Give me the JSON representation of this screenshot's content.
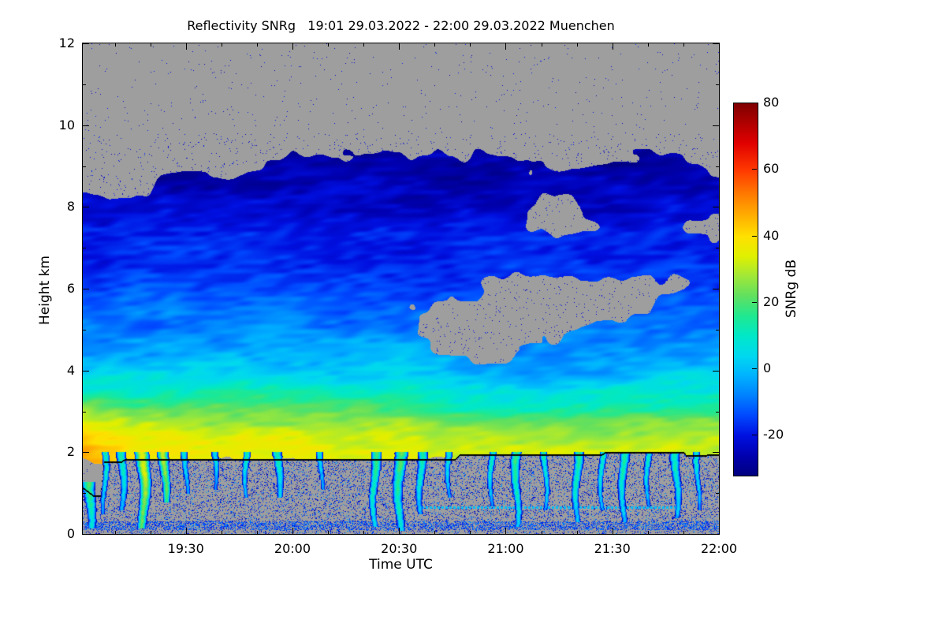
{
  "chart_data": {
    "type": "heatmap",
    "title": "Reflectivity SNRg   19:01 29.03.2022 - 22:00 29.03.2022 Muenchen",
    "xlabel": "Time UTC",
    "ylabel": "Height km",
    "colorbar_label": "SNRg dB",
    "station": "Muenchen",
    "time_start": "19:01 29.03.2022",
    "time_end": "22:00 29.03.2022",
    "x_range_minutes": [
      1,
      180
    ],
    "x_tick_labels": [
      "19:30",
      "20:00",
      "20:30",
      "21:00",
      "21:30",
      "22:00"
    ],
    "x_tick_minutes": [
      30,
      60,
      90,
      120,
      150,
      180
    ],
    "x_minor_step_minutes": 10,
    "y_ticks": [
      0,
      2,
      4,
      6,
      8,
      10,
      12
    ],
    "y_minor_ticks": [
      1,
      3,
      5,
      7,
      9,
      11
    ],
    "ylim": [
      0,
      12
    ],
    "colorbar_ticks": [
      80,
      60,
      40,
      20,
      0,
      -20
    ],
    "clim": [
      -32,
      80
    ],
    "no_data_color": "#9e9e9e",
    "colormap_stops": [
      [
        -32,
        "#00007F"
      ],
      [
        -26,
        "#0000B0"
      ],
      [
        -20,
        "#0010E0"
      ],
      [
        -14,
        "#0048FF"
      ],
      [
        -8,
        "#0080FF"
      ],
      [
        -2,
        "#00B2FF"
      ],
      [
        4,
        "#00D8F0"
      ],
      [
        10,
        "#00E8C8"
      ],
      [
        16,
        "#20E890"
      ],
      [
        22,
        "#60E060"
      ],
      [
        28,
        "#A0E838"
      ],
      [
        34,
        "#E0F000"
      ],
      [
        40,
        "#FFE000"
      ],
      [
        46,
        "#FFB000"
      ],
      [
        52,
        "#FF8000"
      ],
      [
        60,
        "#FF3800"
      ],
      [
        68,
        "#E00000"
      ],
      [
        74,
        "#B00000"
      ],
      [
        80,
        "#7F0000"
      ]
    ],
    "time_columns_minutes": [
      0,
      15,
      30,
      45,
      60,
      75,
      90,
      105,
      120,
      135,
      150,
      165,
      180
    ],
    "heights_km": [
      12,
      11.5,
      11,
      10.5,
      10,
      9.5,
      9,
      8.5,
      8,
      7.5,
      7,
      6.5,
      6,
      5.5,
      5,
      4.5,
      4,
      3.5,
      3,
      2.5,
      2,
      1.5,
      1,
      0.5,
      0
    ],
    "snr_grid_db": [
      [
        null,
        null,
        null,
        null,
        null,
        null,
        null,
        null,
        null,
        null,
        null,
        null,
        null
      ],
      [
        null,
        null,
        null,
        null,
        null,
        null,
        null,
        null,
        null,
        null,
        null,
        null,
        null
      ],
      [
        null,
        null,
        null,
        null,
        null,
        null,
        null,
        null,
        null,
        null,
        null,
        null,
        null
      ],
      [
        null,
        null,
        null,
        null,
        null,
        null,
        null,
        null,
        null,
        null,
        null,
        null,
        null
      ],
      [
        null,
        null,
        null,
        null,
        null,
        null,
        null,
        null,
        null,
        null,
        null,
        null,
        null
      ],
      [
        null,
        null,
        null,
        null,
        null,
        null,
        null,
        null,
        null,
        null,
        null,
        null,
        null
      ],
      [
        null,
        null,
        null,
        null,
        -27,
        -26,
        -26,
        -27,
        -27,
        null,
        -27,
        -27,
        null
      ],
      [
        null,
        null,
        -26,
        -25,
        -24,
        -24,
        -24,
        -25,
        -25,
        -25,
        -24,
        -25,
        -25
      ],
      [
        -24,
        -24,
        -23,
        -22,
        -22,
        -22,
        -22,
        -23,
        -22,
        null,
        -22,
        -23,
        -23
      ],
      [
        -21,
        -20,
        -20,
        -19,
        -20,
        -20,
        -20,
        -21,
        -20,
        null,
        -21,
        -20,
        null
      ],
      [
        -19,
        -18,
        -17,
        -17,
        -18,
        -18,
        -18,
        -19,
        -18,
        -19,
        -18,
        -18,
        -18
      ],
      [
        -17,
        -16,
        -15,
        -15,
        -16,
        -16,
        -16,
        -17,
        -16,
        -16,
        -16,
        -16,
        -16
      ],
      [
        -15,
        -14,
        -13,
        -13,
        -14,
        -14,
        -14,
        -14,
        null,
        null,
        null,
        null,
        -14
      ],
      [
        -12,
        -11,
        -10,
        -10,
        -11,
        -11,
        -11,
        null,
        null,
        null,
        null,
        -12,
        -12
      ],
      [
        -9,
        -8,
        -7,
        -7,
        -8,
        -8,
        -8,
        null,
        null,
        null,
        -9,
        -9,
        -9
      ],
      [
        -5,
        -4,
        -3,
        -3,
        -4,
        -4,
        -4,
        null,
        null,
        -6,
        -6,
        -5,
        -5
      ],
      [
        0,
        2,
        3,
        3,
        2,
        2,
        2,
        -2,
        -4,
        -4,
        -2,
        0,
        0
      ],
      [
        10,
        12,
        12,
        12,
        11,
        10,
        10,
        6,
        4,
        4,
        6,
        8,
        8
      ],
      [
        30,
        24,
        23,
        22,
        22,
        21,
        20,
        16,
        14,
        15,
        16,
        18,
        18
      ],
      [
        42,
        34,
        33,
        32,
        32,
        31,
        30,
        27,
        25,
        26,
        27,
        28,
        28
      ],
      [
        45,
        38,
        37,
        37,
        37,
        36,
        36,
        34,
        33,
        33,
        34,
        35,
        34
      ],
      [
        null,
        null,
        null,
        null,
        null,
        null,
        null,
        null,
        null,
        null,
        null,
        null,
        null
      ],
      [
        null,
        null,
        null,
        null,
        null,
        null,
        null,
        null,
        null,
        null,
        null,
        null,
        null
      ],
      [
        null,
        null,
        null,
        null,
        null,
        null,
        null,
        null,
        null,
        null,
        null,
        null,
        null
      ],
      [
        null,
        null,
        null,
        null,
        null,
        null,
        null,
        null,
        null,
        null,
        null,
        null,
        null
      ]
    ],
    "melting_line_km": [
      [
        1,
        1.15
      ],
      [
        4,
        0.95
      ],
      [
        6,
        0.95
      ],
      [
        7,
        1.78
      ],
      [
        12,
        1.78
      ],
      [
        13,
        1.84
      ],
      [
        106,
        1.84
      ],
      [
        107,
        1.94
      ],
      [
        147,
        1.94
      ],
      [
        148,
        2.01
      ],
      [
        170,
        2.01
      ],
      [
        171,
        1.92
      ],
      [
        180,
        1.95
      ]
    ],
    "precip_streaks": [
      {
        "t": 3,
        "w": 2.5,
        "bottom": 0.15,
        "snr": 22
      },
      {
        "t": 7,
        "w": 1.5,
        "bottom": 0.5,
        "snr": 14
      },
      {
        "t": 12,
        "w": 2,
        "bottom": 0.6,
        "snr": 16
      },
      {
        "t": 18,
        "w": 2.5,
        "bottom": 0.15,
        "snr": 36
      },
      {
        "t": 24,
        "w": 2,
        "bottom": 0.8,
        "snr": 32
      },
      {
        "t": 30,
        "w": 1.5,
        "bottom": 1.0,
        "snr": 12
      },
      {
        "t": 38,
        "w": 1.5,
        "bottom": 1.1,
        "snr": 10
      },
      {
        "t": 47,
        "w": 1.5,
        "bottom": 0.9,
        "snr": 14
      },
      {
        "t": 56,
        "w": 2,
        "bottom": 0.9,
        "snr": 16
      },
      {
        "t": 68,
        "w": 1.5,
        "bottom": 1.1,
        "snr": 10
      },
      {
        "t": 83,
        "w": 2,
        "bottom": 0.2,
        "snr": 20
      },
      {
        "t": 90,
        "w": 2.5,
        "bottom": 0.1,
        "snr": 22
      },
      {
        "t": 96,
        "w": 2,
        "bottom": 0.5,
        "snr": 16
      },
      {
        "t": 104,
        "w": 1.5,
        "bottom": 0.9,
        "snr": 12
      },
      {
        "t": 116,
        "w": 1.5,
        "bottom": 0.7,
        "snr": 14
      },
      {
        "t": 123,
        "w": 2,
        "bottom": 0.2,
        "snr": 20
      },
      {
        "t": 131,
        "w": 1.5,
        "bottom": 0.6,
        "snr": 14
      },
      {
        "t": 140,
        "w": 2,
        "bottom": 0.3,
        "snr": 18
      },
      {
        "t": 147,
        "w": 1.5,
        "bottom": 0.6,
        "snr": 14
      },
      {
        "t": 153,
        "w": 2,
        "bottom": 0.3,
        "snr": 16
      },
      {
        "t": 160,
        "w": 1.5,
        "bottom": 0.7,
        "snr": 12
      },
      {
        "t": 168,
        "w": 2,
        "bottom": 0.4,
        "snr": 16
      },
      {
        "t": 174,
        "w": 1.5,
        "bottom": 0.6,
        "snr": 12
      }
    ],
    "thin_layer": {
      "t_start": 95,
      "t_end": 168,
      "height": 0.65
    },
    "bottom_band_km": 0.2
  }
}
